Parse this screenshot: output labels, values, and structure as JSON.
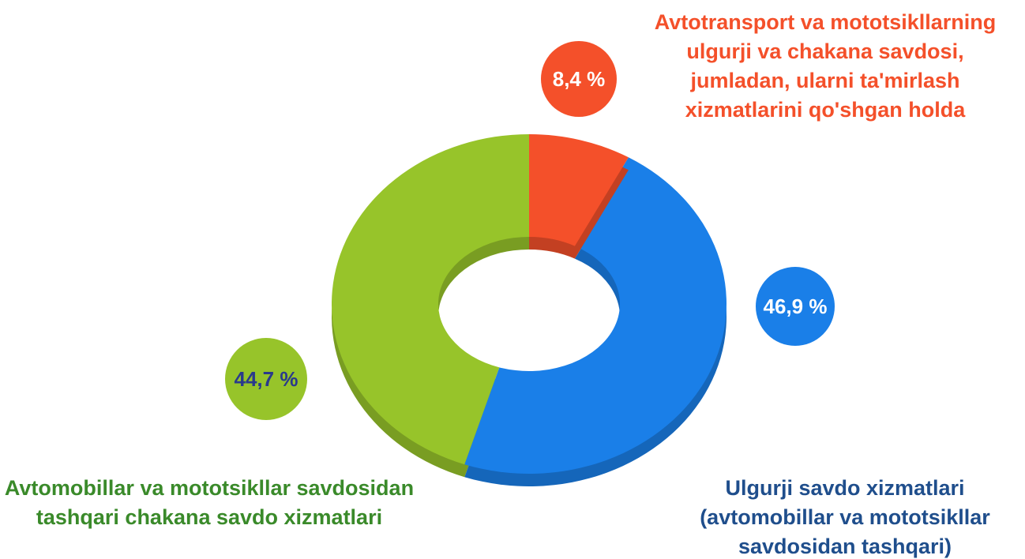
{
  "chart_data": {
    "type": "pie",
    "donut": true,
    "categories": [
      "Avtotransport va mototsikllarning ulgurji va chakana savdosi, jumladan, ularni ta'mirlash xizmatlarini qo'shgan holda",
      "Ulgurji savdo xizmatlari (avtomobillar va mototsikllar savdosidan tashqari)",
      "Avtomobillar va mototsikllar savdosidan tashqari chakana savdo xizmatlari"
    ],
    "values": [
      8.4,
      46.9,
      44.7
    ],
    "value_labels": [
      "8,4 %",
      "46,9 %",
      "44,7 %"
    ],
    "colors": [
      "#f4502a",
      "#1a7fe8",
      "#97c42a"
    ]
  }
}
